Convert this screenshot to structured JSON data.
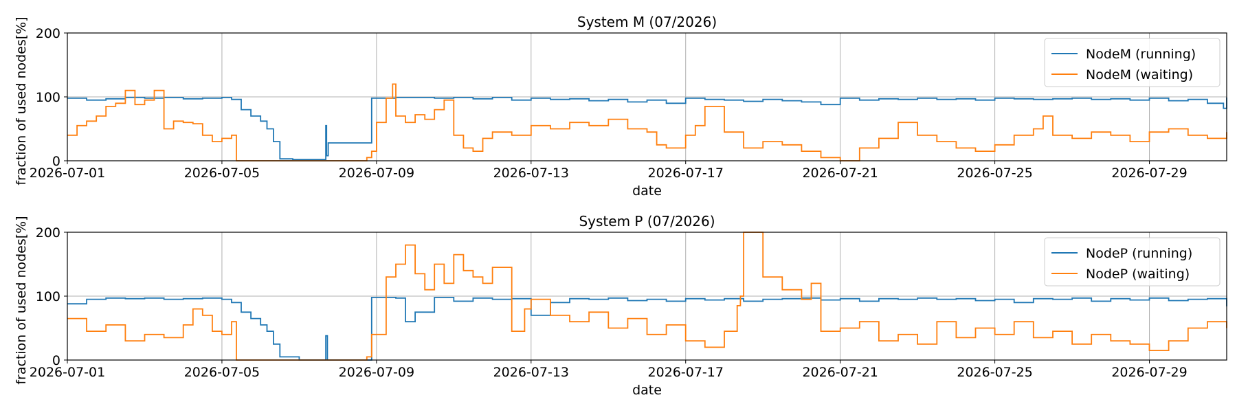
{
  "chart_data": [
    {
      "type": "line",
      "title": "System M (07/2026)",
      "xlabel": "date",
      "ylabel": "fraction of used nodes[%]",
      "ylim": [
        0,
        200
      ],
      "yticks": [
        0,
        100,
        200
      ],
      "xlim": [
        "2026-07-01",
        "2026-07-31"
      ],
      "xticks": [
        "2026-07-01",
        "2026-07-05",
        "2026-07-09",
        "2026-07-13",
        "2026-07-17",
        "2026-07-21",
        "2026-07-25",
        "2026-07-29"
      ],
      "grid": true,
      "legend_position": "top-right",
      "series": [
        {
          "name": "NodeM (running)",
          "color": "#1f77b4",
          "x": [
            "2026-07-01T00:00",
            "2026-07-01T12:00",
            "2026-07-02T00:00",
            "2026-07-02T12:00",
            "2026-07-03T00:00",
            "2026-07-03T12:00",
            "2026-07-04T00:00",
            "2026-07-04T12:00",
            "2026-07-05T00:00",
            "2026-07-05T06:00",
            "2026-07-05T12:00",
            "2026-07-05T18:00",
            "2026-07-06T00:00",
            "2026-07-06T04:00",
            "2026-07-06T08:00",
            "2026-07-06T12:00",
            "2026-07-06T20:00",
            "2026-07-07T12:00",
            "2026-07-07T16:00",
            "2026-07-07T16:30",
            "2026-07-07T17:00",
            "2026-07-07T18:00",
            "2026-07-08T21:00",
            "2026-07-09T12:00",
            "2026-07-10T00:00",
            "2026-07-10T12:00",
            "2026-07-11T00:00",
            "2026-07-11T12:00",
            "2026-07-12T00:00",
            "2026-07-12T12:00",
            "2026-07-13T00:00",
            "2026-07-13T12:00",
            "2026-07-14T00:00",
            "2026-07-14T12:00",
            "2026-07-15T00:00",
            "2026-07-15T12:00",
            "2026-07-16T00:00",
            "2026-07-16T12:00",
            "2026-07-17T00:00",
            "2026-07-17T12:00",
            "2026-07-18T00:00",
            "2026-07-18T12:00",
            "2026-07-19T00:00",
            "2026-07-19T12:00",
            "2026-07-20T00:00",
            "2026-07-20T12:00",
            "2026-07-21T00:00",
            "2026-07-21T12:00",
            "2026-07-22T00:00",
            "2026-07-22T12:00",
            "2026-07-23T00:00",
            "2026-07-23T12:00",
            "2026-07-24T00:00",
            "2026-07-24T12:00",
            "2026-07-25T00:00",
            "2026-07-25T12:00",
            "2026-07-26T00:00",
            "2026-07-26T12:00",
            "2026-07-27T00:00",
            "2026-07-27T12:00",
            "2026-07-28T00:00",
            "2026-07-28T12:00",
            "2026-07-29T00:00",
            "2026-07-29T12:00",
            "2026-07-30T00:00",
            "2026-07-30T12:00",
            "2026-07-30T22:00",
            "2026-07-31T00:00"
          ],
          "y": [
            98,
            95,
            97,
            99,
            98,
            99,
            97,
            98,
            99,
            96,
            80,
            70,
            62,
            50,
            30,
            3,
            2,
            2,
            2,
            55,
            8,
            28,
            98,
            99,
            99,
            98,
            99,
            97,
            99,
            95,
            98,
            96,
            97,
            94,
            96,
            92,
            95,
            90,
            98,
            96,
            95,
            93,
            96,
            94,
            92,
            88,
            98,
            95,
            97,
            96,
            98,
            96,
            97,
            95,
            98,
            97,
            96,
            97,
            98,
            96,
            97,
            95,
            98,
            94,
            96,
            90,
            82,
            99
          ]
        },
        {
          "name": "NodeM (waiting)",
          "color": "#ff7f0e",
          "x": [
            "2026-07-01T00:00",
            "2026-07-01T06:00",
            "2026-07-01T12:00",
            "2026-07-01T18:00",
            "2026-07-02T00:00",
            "2026-07-02T06:00",
            "2026-07-02T12:00",
            "2026-07-02T18:00",
            "2026-07-03T00:00",
            "2026-07-03T06:00",
            "2026-07-03T12:00",
            "2026-07-03T18:00",
            "2026-07-04T00:00",
            "2026-07-04T06:00",
            "2026-07-04T12:00",
            "2026-07-04T18:00",
            "2026-07-05T00:00",
            "2026-07-05T06:00",
            "2026-07-05T09:00",
            "2026-07-06T00:00",
            "2026-07-07T00:00",
            "2026-07-08T00:00",
            "2026-07-08T18:00",
            "2026-07-08T21:00",
            "2026-07-09T00:00",
            "2026-07-09T06:00",
            "2026-07-09T10:00",
            "2026-07-09T12:00",
            "2026-07-09T18:00",
            "2026-07-10T00:00",
            "2026-07-10T06:00",
            "2026-07-10T12:00",
            "2026-07-10T18:00",
            "2026-07-11T00:00",
            "2026-07-11T06:00",
            "2026-07-11T12:00",
            "2026-07-11T18:00",
            "2026-07-12T00:00",
            "2026-07-12T12:00",
            "2026-07-13T00:00",
            "2026-07-13T12:00",
            "2026-07-14T00:00",
            "2026-07-14T12:00",
            "2026-07-15T00:00",
            "2026-07-15T12:00",
            "2026-07-16T00:00",
            "2026-07-16T06:00",
            "2026-07-16T12:00",
            "2026-07-17T00:00",
            "2026-07-17T06:00",
            "2026-07-17T12:00",
            "2026-07-18T00:00",
            "2026-07-18T12:00",
            "2026-07-19T00:00",
            "2026-07-19T12:00",
            "2026-07-20T00:00",
            "2026-07-20T12:00",
            "2026-07-21T00:00",
            "2026-07-21T06:00",
            "2026-07-21T12:00",
            "2026-07-22T00:00",
            "2026-07-22T12:00",
            "2026-07-23T00:00",
            "2026-07-23T12:00",
            "2026-07-24T00:00",
            "2026-07-24T12:00",
            "2026-07-25T00:00",
            "2026-07-25T12:00",
            "2026-07-26T00:00",
            "2026-07-26T06:00",
            "2026-07-26T12:00",
            "2026-07-27T00:00",
            "2026-07-27T12:00",
            "2026-07-28T00:00",
            "2026-07-28T12:00",
            "2026-07-29T00:00",
            "2026-07-29T12:00",
            "2026-07-30T00:00",
            "2026-07-30T12:00",
            "2026-07-31T00:00"
          ],
          "y": [
            40,
            55,
            62,
            70,
            85,
            90,
            110,
            88,
            95,
            110,
            50,
            62,
            60,
            58,
            40,
            30,
            35,
            40,
            0,
            0,
            0,
            0,
            5,
            15,
            60,
            98,
            120,
            70,
            60,
            72,
            65,
            80,
            95,
            40,
            20,
            15,
            35,
            45,
            40,
            55,
            50,
            60,
            55,
            65,
            50,
            45,
            25,
            20,
            40,
            55,
            85,
            45,
            20,
            30,
            25,
            15,
            5,
            0,
            0,
            20,
            35,
            60,
            40,
            30,
            20,
            15,
            25,
            40,
            50,
            70,
            40,
            35,
            45,
            40,
            30,
            45,
            50,
            40,
            35,
            45
          ]
        }
      ]
    },
    {
      "type": "line",
      "title": "System P (07/2026)",
      "xlabel": "date",
      "ylabel": "fraction of used nodes[%]",
      "ylim": [
        0,
        200
      ],
      "yticks": [
        0,
        100,
        200
      ],
      "xlim": [
        "2026-07-01",
        "2026-07-31"
      ],
      "xticks": [
        "2026-07-01",
        "2026-07-05",
        "2026-07-09",
        "2026-07-13",
        "2026-07-17",
        "2026-07-21",
        "2026-07-25",
        "2026-07-29"
      ],
      "grid": true,
      "legend_position": "top-right",
      "series": [
        {
          "name": "NodeP (running)",
          "color": "#1f77b4",
          "x": [
            "2026-07-01T00:00",
            "2026-07-01T12:00",
            "2026-07-02T00:00",
            "2026-07-02T12:00",
            "2026-07-03T00:00",
            "2026-07-03T12:00",
            "2026-07-04T00:00",
            "2026-07-04T12:00",
            "2026-07-05T00:00",
            "2026-07-05T06:00",
            "2026-07-05T12:00",
            "2026-07-05T18:00",
            "2026-07-06T00:00",
            "2026-07-06T04:00",
            "2026-07-06T08:00",
            "2026-07-06T12:00",
            "2026-07-07T00:00",
            "2026-07-07T12:00",
            "2026-07-07T16:00",
            "2026-07-07T16:30",
            "2026-07-07T17:30",
            "2026-07-08T21:00",
            "2026-07-09T12:00",
            "2026-07-09T18:00",
            "2026-07-10T00:00",
            "2026-07-10T12:00",
            "2026-07-11T00:00",
            "2026-07-11T12:00",
            "2026-07-12T00:00",
            "2026-07-12T12:00",
            "2026-07-13T00:00",
            "2026-07-13T12:00",
            "2026-07-14T00:00",
            "2026-07-14T12:00",
            "2026-07-15T00:00",
            "2026-07-15T12:00",
            "2026-07-16T00:00",
            "2026-07-16T12:00",
            "2026-07-17T00:00",
            "2026-07-17T12:00",
            "2026-07-18T00:00",
            "2026-07-18T12:00",
            "2026-07-19T00:00",
            "2026-07-19T12:00",
            "2026-07-20T00:00",
            "2026-07-20T12:00",
            "2026-07-21T00:00",
            "2026-07-21T12:00",
            "2026-07-22T00:00",
            "2026-07-22T12:00",
            "2026-07-23T00:00",
            "2026-07-23T12:00",
            "2026-07-24T00:00",
            "2026-07-24T12:00",
            "2026-07-25T00:00",
            "2026-07-25T12:00",
            "2026-07-26T00:00",
            "2026-07-26T12:00",
            "2026-07-27T00:00",
            "2026-07-27T12:00",
            "2026-07-28T00:00",
            "2026-07-28T12:00",
            "2026-07-29T00:00",
            "2026-07-29T12:00",
            "2026-07-30T00:00",
            "2026-07-30T12:00",
            "2026-07-31T00:00"
          ],
          "y": [
            88,
            95,
            97,
            96,
            97,
            95,
            96,
            97,
            95,
            90,
            75,
            65,
            55,
            45,
            25,
            5,
            0,
            0,
            0,
            38,
            0,
            98,
            97,
            60,
            75,
            98,
            92,
            97,
            95,
            96,
            70,
            90,
            96,
            95,
            97,
            93,
            95,
            92,
            96,
            94,
            96,
            92,
            95,
            96,
            97,
            94,
            96,
            92,
            96,
            95,
            97,
            95,
            96,
            93,
            95,
            90,
            96,
            95,
            97,
            92,
            96,
            94,
            97,
            93,
            95,
            96,
            84
          ]
        },
        {
          "name": "NodeP (waiting)",
          "color": "#ff7f0e",
          "x": [
            "2026-07-01T00:00",
            "2026-07-01T12:00",
            "2026-07-02T00:00",
            "2026-07-02T12:00",
            "2026-07-03T00:00",
            "2026-07-03T12:00",
            "2026-07-04T00:00",
            "2026-07-04T06:00",
            "2026-07-04T12:00",
            "2026-07-04T18:00",
            "2026-07-05T00:00",
            "2026-07-05T06:00",
            "2026-07-05T09:00",
            "2026-07-06T00:00",
            "2026-07-07T00:00",
            "2026-07-08T00:00",
            "2026-07-08T18:00",
            "2026-07-08T21:00",
            "2026-07-09T06:00",
            "2026-07-09T12:00",
            "2026-07-09T18:00",
            "2026-07-10T00:00",
            "2026-07-10T06:00",
            "2026-07-10T12:00",
            "2026-07-10T18:00",
            "2026-07-11T00:00",
            "2026-07-11T06:00",
            "2026-07-11T12:00",
            "2026-07-11T18:00",
            "2026-07-12T00:00",
            "2026-07-12T12:00",
            "2026-07-12T20:00",
            "2026-07-13T00:00",
            "2026-07-13T12:00",
            "2026-07-14T00:00",
            "2026-07-14T12:00",
            "2026-07-15T00:00",
            "2026-07-15T12:00",
            "2026-07-16T00:00",
            "2026-07-16T12:00",
            "2026-07-17T00:00",
            "2026-07-17T12:00",
            "2026-07-18T00:00",
            "2026-07-18T08:00",
            "2026-07-18T10:00",
            "2026-07-18T12:00",
            "2026-07-19T00:00",
            "2026-07-19T12:00",
            "2026-07-20T00:00",
            "2026-07-20T06:00",
            "2026-07-20T12:00",
            "2026-07-21T00:00",
            "2026-07-21T12:00",
            "2026-07-22T00:00",
            "2026-07-22T12:00",
            "2026-07-23T00:00",
            "2026-07-23T12:00",
            "2026-07-24T00:00",
            "2026-07-24T12:00",
            "2026-07-25T00:00",
            "2026-07-25T12:00",
            "2026-07-26T00:00",
            "2026-07-26T12:00",
            "2026-07-27T00:00",
            "2026-07-27T12:00",
            "2026-07-28T00:00",
            "2026-07-28T12:00",
            "2026-07-29T00:00",
            "2026-07-29T12:00",
            "2026-07-30T00:00",
            "2026-07-30T12:00",
            "2026-07-31T00:00"
          ],
          "y": [
            65,
            45,
            55,
            30,
            40,
            35,
            55,
            80,
            70,
            45,
            40,
            60,
            0,
            0,
            0,
            0,
            5,
            40,
            130,
            150,
            180,
            135,
            110,
            150,
            120,
            165,
            140,
            130,
            120,
            145,
            45,
            80,
            95,
            70,
            60,
            75,
            50,
            65,
            40,
            55,
            30,
            20,
            45,
            85,
            100,
            200,
            130,
            110,
            95,
            120,
            45,
            50,
            60,
            30,
            40,
            25,
            60,
            35,
            50,
            40,
            60,
            35,
            45,
            25,
            40,
            30,
            25,
            15,
            30,
            50,
            60,
            50
          ]
        }
      ]
    }
  ]
}
